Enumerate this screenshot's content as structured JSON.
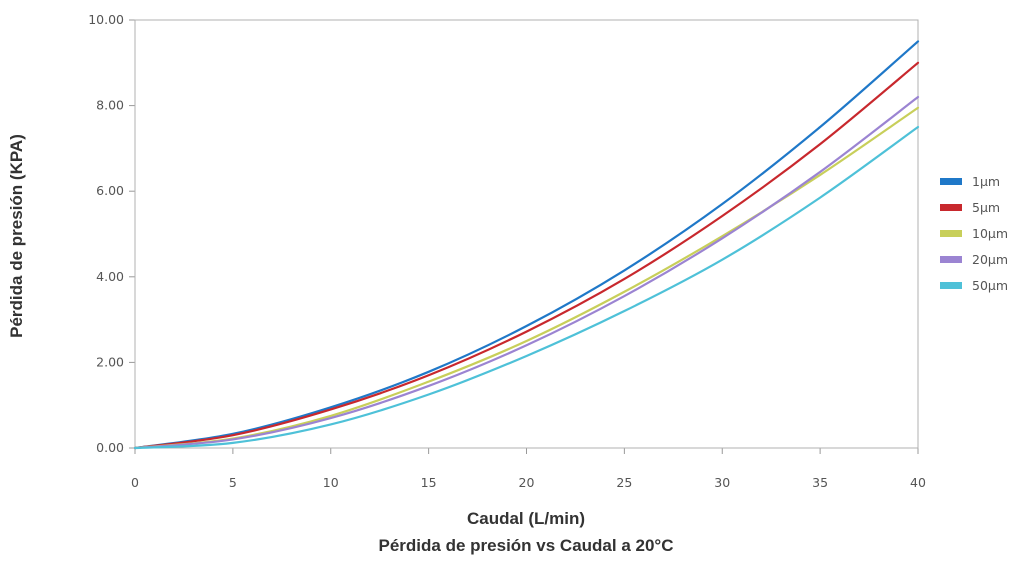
{
  "chart_data": {
    "type": "line",
    "xlabel": "Caudal (L/min)",
    "ylabel": "Pérdida de presión (KPA)",
    "caption": "Pérdida de presión vs Caudal a 20°C",
    "xlim": [
      0,
      40
    ],
    "ylim": [
      0,
      10
    ],
    "x_ticks": [
      "0",
      "5",
      "10",
      "15",
      "20",
      "25",
      "30",
      "35",
      "40"
    ],
    "y_ticks": [
      "0.00",
      "2.00",
      "4.00",
      "6.00",
      "8.00",
      "10.00"
    ],
    "grid": false,
    "legend_position": "right",
    "x": [
      0,
      5,
      10,
      15,
      20,
      25,
      30,
      35,
      40
    ],
    "series": [
      {
        "name": "1µm",
        "color": "#1f78c8",
        "values": [
          0,
          0.33,
          0.95,
          1.78,
          2.85,
          4.15,
          5.7,
          7.5,
          9.5
        ]
      },
      {
        "name": "5µm",
        "color": "#c8282d",
        "values": [
          0,
          0.3,
          0.9,
          1.7,
          2.72,
          3.95,
          5.42,
          7.1,
          9.0
        ]
      },
      {
        "name": "10µm",
        "color": "#c8cf5a",
        "values": [
          0,
          0.22,
          0.75,
          1.55,
          2.5,
          3.65,
          4.95,
          6.38,
          7.95
        ]
      },
      {
        "name": "20µm",
        "color": "#9b84d2",
        "values": [
          0,
          0.2,
          0.7,
          1.45,
          2.4,
          3.55,
          4.9,
          6.45,
          8.2
        ]
      },
      {
        "name": "50µm",
        "color": "#4ec1d8",
        "values": [
          0,
          0.12,
          0.55,
          1.25,
          2.15,
          3.2,
          4.4,
          5.85,
          7.5
        ]
      }
    ]
  }
}
